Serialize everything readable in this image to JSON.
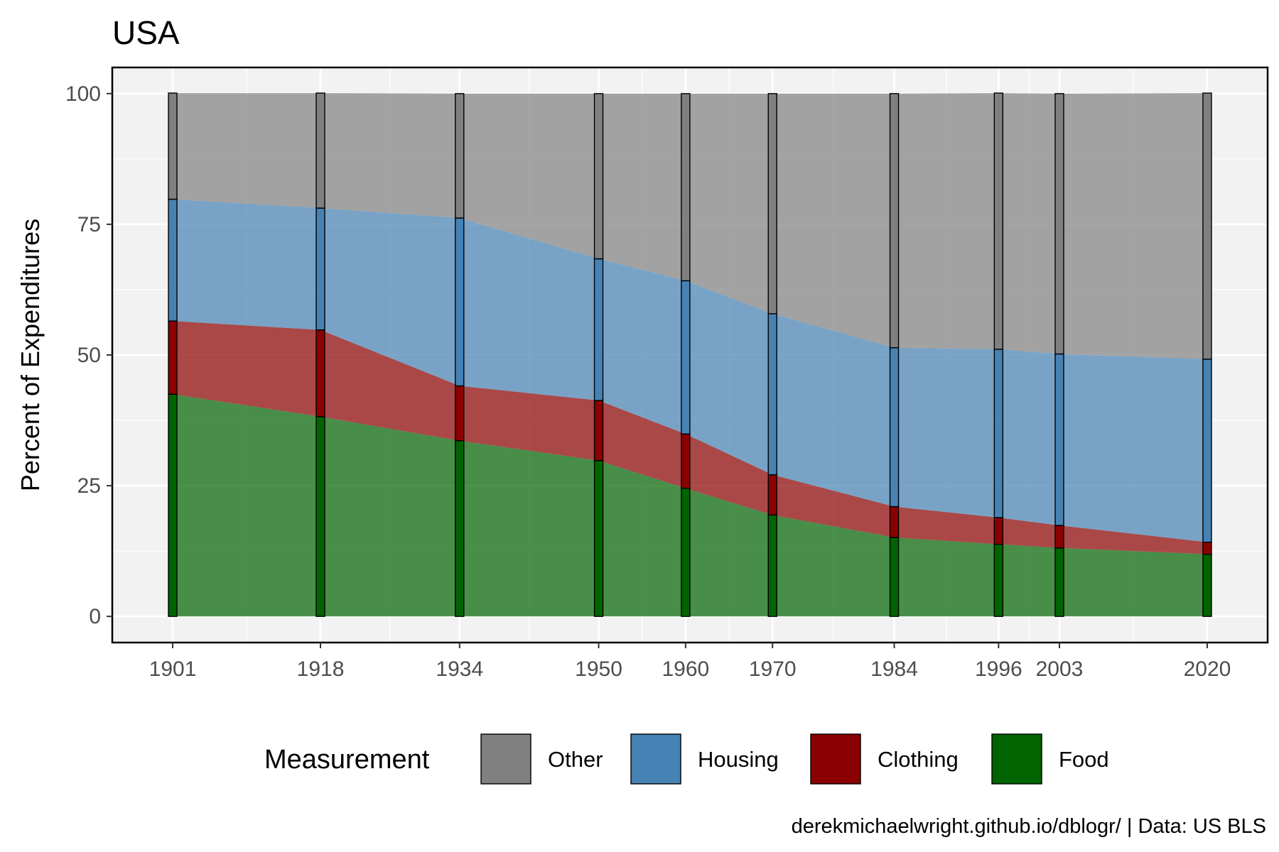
{
  "chart_data": {
    "type": "area",
    "title": "USA",
    "xlabel": "",
    "ylabel": "Percent of Expenditures",
    "caption": "derekmichaelwright.github.io/dblogr/ | Data: US BLS",
    "legend_title": "Measurement",
    "legend_position": "bottom",
    "x": [
      1901,
      1918,
      1934,
      1950,
      1960,
      1970,
      1984,
      1996,
      2003,
      2020
    ],
    "x_tick_labels": [
      "1901",
      "1918",
      "1934",
      "1950",
      "1960",
      "1970",
      "1984",
      "1996",
      "2003",
      "2020"
    ],
    "y_ticks": [
      0,
      25,
      50,
      75,
      100
    ],
    "y_tick_labels": [
      "0",
      "25",
      "50",
      "75",
      "100"
    ],
    "ylim": [
      0,
      100
    ],
    "grid": true,
    "stacked": true,
    "series": [
      {
        "name": "Other",
        "color": "#808080",
        "values": [
          20.3,
          22.0,
          23.8,
          31.6,
          35.8,
          42.1,
          48.6,
          49.0,
          49.8,
          50.9
        ]
      },
      {
        "name": "Housing",
        "color": "#4682B4",
        "values": [
          23.3,
          23.3,
          32.1,
          27.1,
          29.3,
          30.8,
          30.4,
          32.2,
          32.8,
          35.0
        ]
      },
      {
        "name": "Clothing",
        "color": "#8B0000",
        "values": [
          14.0,
          16.6,
          10.5,
          11.5,
          10.4,
          7.7,
          5.9,
          5.1,
          4.3,
          2.3
        ]
      },
      {
        "name": "Food",
        "color": "#006400",
        "values": [
          42.5,
          38.2,
          33.6,
          29.8,
          24.5,
          19.4,
          15.1,
          13.8,
          13.1,
          11.9
        ]
      }
    ]
  }
}
